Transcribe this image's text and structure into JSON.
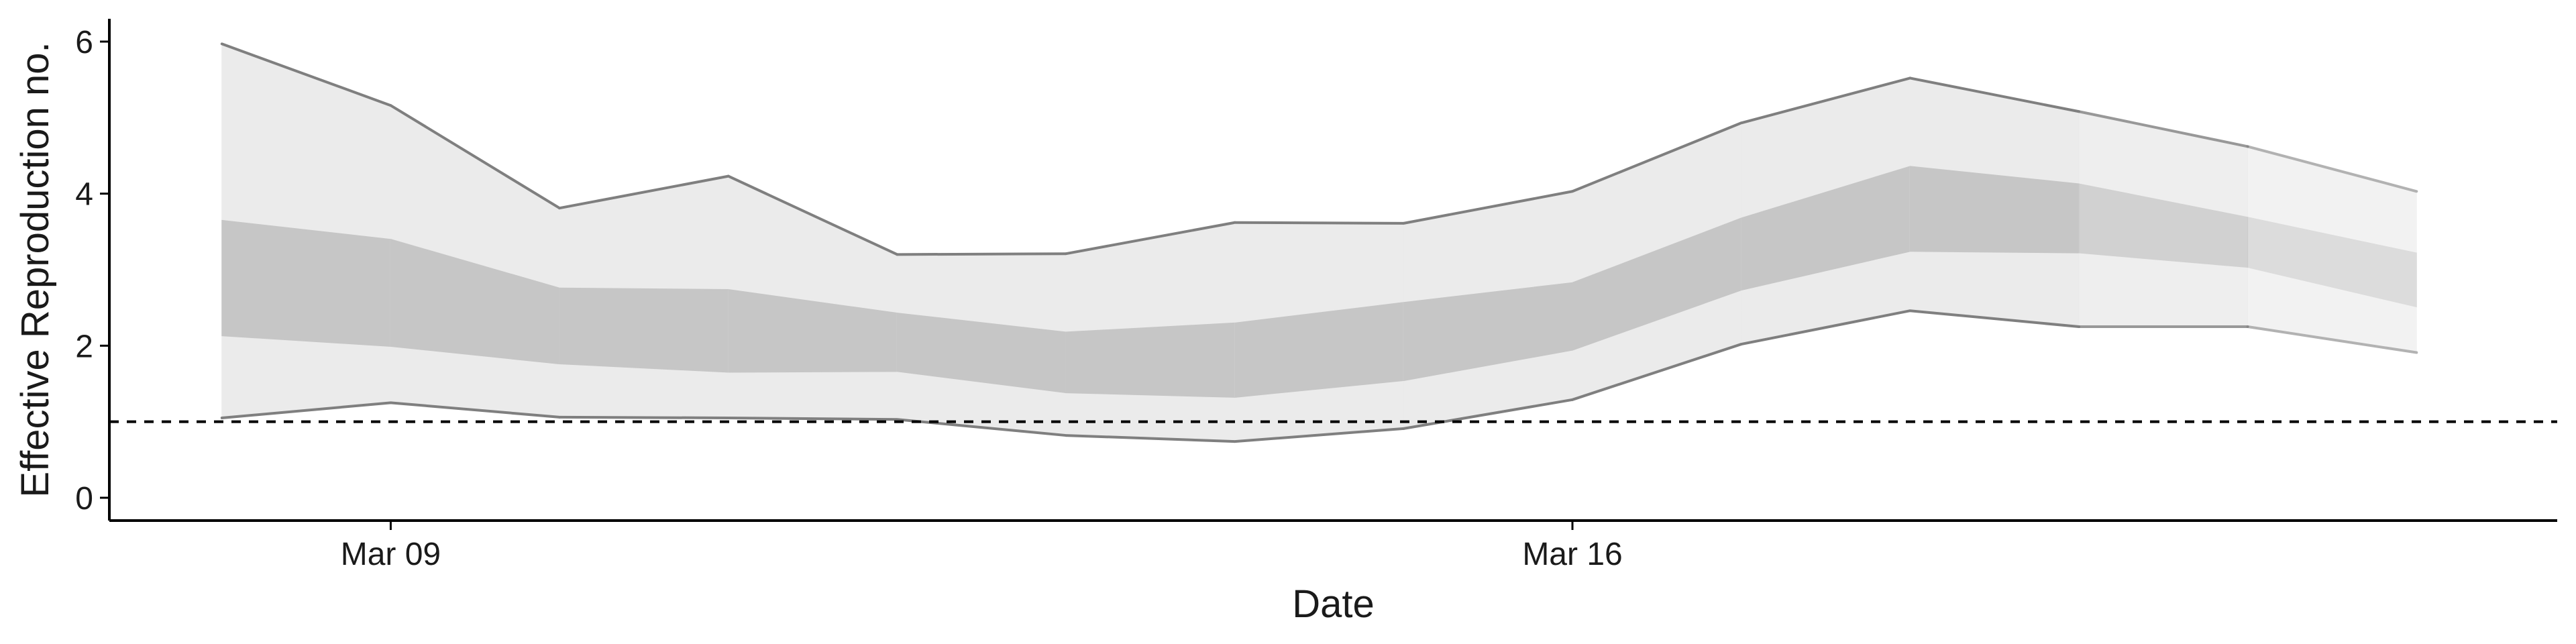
{
  "chart_data": {
    "type": "area",
    "title": "",
    "xlabel": "Date",
    "ylabel": "Effective Reproduction no.",
    "x_tick_labels": [
      {
        "label": "Mar 09",
        "date": "2020-03-09"
      },
      {
        "label": "Mar 16",
        "date": "2020-03-16"
      }
    ],
    "y_ticks": [
      0,
      2,
      4,
      6
    ],
    "ylim": [
      -0.3,
      6.3
    ],
    "xlim": [
      "2020-03-07T08:00",
      "2020-03-21T20:00"
    ],
    "reference_line": 1,
    "grid": false,
    "dates": [
      "2020-03-08",
      "2020-03-09",
      "2020-03-10",
      "2020-03-11",
      "2020-03-12",
      "2020-03-13",
      "2020-03-14",
      "2020-03-15",
      "2020-03-16",
      "2020-03-17",
      "2020-03-18",
      "2020-03-19",
      "2020-03-20",
      "2020-03-21"
    ],
    "outer_upper": [
      5.97,
      5.16,
      3.81,
      4.23,
      3.2,
      3.21,
      3.62,
      3.61,
      4.03,
      4.93,
      5.52,
      5.08,
      4.62,
      4.03
    ],
    "outer_lower": [
      1.05,
      1.25,
      1.06,
      1.05,
      1.03,
      0.82,
      0.74,
      0.91,
      1.29,
      2.02,
      2.46,
      2.25,
      2.25,
      1.91
    ],
    "inner_upper": [
      3.65,
      3.4,
      2.76,
      2.74,
      2.43,
      2.18,
      2.3,
      2.57,
      2.83,
      3.68,
      4.36,
      4.13,
      3.69,
      3.22
    ],
    "inner_lower": [
      2.13,
      1.99,
      1.76,
      1.65,
      1.66,
      1.38,
      1.32,
      1.54,
      1.94,
      2.73,
      3.24,
      3.22,
      3.03,
      2.51
    ],
    "band_opacity": [
      1,
      1,
      1,
      1,
      1,
      1,
      1,
      1,
      1,
      1,
      1,
      0.8,
      0.6,
      0.4
    ],
    "colors": {
      "outer_band": "#ebebeb",
      "inner_band": "#c6c6c6",
      "band_edge": "#7f7f7f",
      "axis": "#000000"
    }
  }
}
